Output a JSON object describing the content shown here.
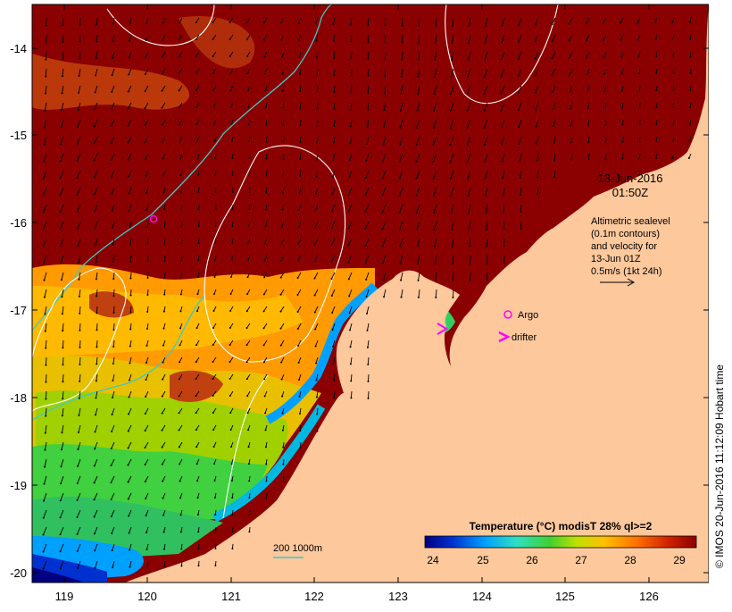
{
  "map": {
    "date_label": "13-Jun-2016",
    "time_label": "01:50Z",
    "info_lines": [
      "Altimetric sealevel",
      "(0.1m contours)",
      "and velocity for",
      "13-Jun 01Z",
      "0.5m/s (1kt 24h)"
    ],
    "legend_argo": "Argo",
    "legend_drifter": "drifter",
    "bathymetry_label": "200  1000m",
    "copyright": "© IMOS 20-Jun-2016 11:12:09 Hobart time",
    "x_ticks": [
      "119",
      "120",
      "121",
      "122",
      "123",
      "124",
      "125",
      "126"
    ],
    "y_ticks": [
      "-14",
      "-15",
      "-16",
      "-17",
      "-18",
      "-19",
      "-20"
    ],
    "colorbar": {
      "title": "Temperature (°C) modisT 28% ql>=2",
      "ticks": [
        "24",
        "25",
        "26",
        "27",
        "28",
        "29"
      ],
      "colors": [
        "#000080",
        "#0030d0",
        "#00a0ff",
        "#30e0c0",
        "#40d030",
        "#c0e000",
        "#ffc000",
        "#ff7000",
        "#d02000",
        "#8b0000"
      ]
    },
    "colors": {
      "land": "#fcc89c",
      "ocean_warm": "#8b0000",
      "contour": "#ffffff",
      "isobath_200": "#40c8c8",
      "argo": "#ff00ff",
      "drifter": "#ff00ff"
    }
  }
}
